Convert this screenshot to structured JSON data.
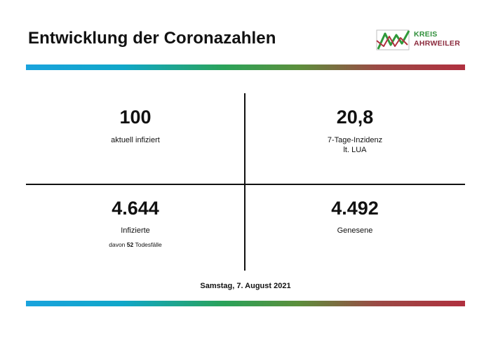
{
  "header": {
    "title": "Entwicklung der Coronazahlen",
    "logo": {
      "line1": "KREIS",
      "line2": "AHRWEILER"
    }
  },
  "stats": {
    "top_left": {
      "value": "100",
      "label": "aktuell infiziert"
    },
    "top_right": {
      "value": "20,8",
      "label_line1": "7-Tage-Inzidenz",
      "label_line2": "lt. LUA"
    },
    "bottom_left": {
      "value": "4.644",
      "label": "Infizierte",
      "sub_prefix": "davon",
      "sub_number": "52",
      "sub_suffix": "Todesfälle"
    },
    "bottom_right": {
      "value": "4.492",
      "label": "Genesene"
    }
  },
  "footer": {
    "date": "Samstag, 7. August 2021"
  },
  "colors": {
    "bar_start": "#1aa3dd",
    "bar_mid": "#2aa35a",
    "bar_end": "#b0303f"
  }
}
